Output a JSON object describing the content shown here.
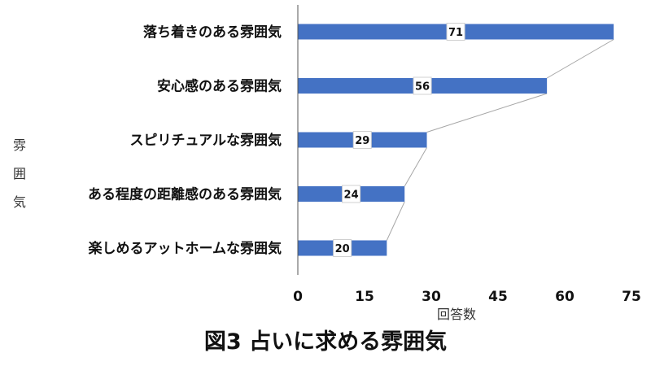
{
  "chart_data": {
    "type": "bar",
    "orientation": "horizontal",
    "title": "図3 占いに求める雰囲気",
    "xlabel": "回答数",
    "ylabel": "雰囲気",
    "categories": [
      "落ち着きのある雰囲気",
      "安心感のある雰囲気",
      "スピリチュアルな雰囲気",
      "ある程度の距離感のある雰囲気",
      "楽しめるアットホームな雰囲気"
    ],
    "values": [
      71,
      56,
      29,
      24,
      20
    ],
    "xlim": [
      0,
      75
    ],
    "xticks": [
      "0",
      "15",
      "30",
      "45",
      "60",
      "75"
    ],
    "bar_color": "#4472C4",
    "series_lines": true,
    "grid": false
  }
}
